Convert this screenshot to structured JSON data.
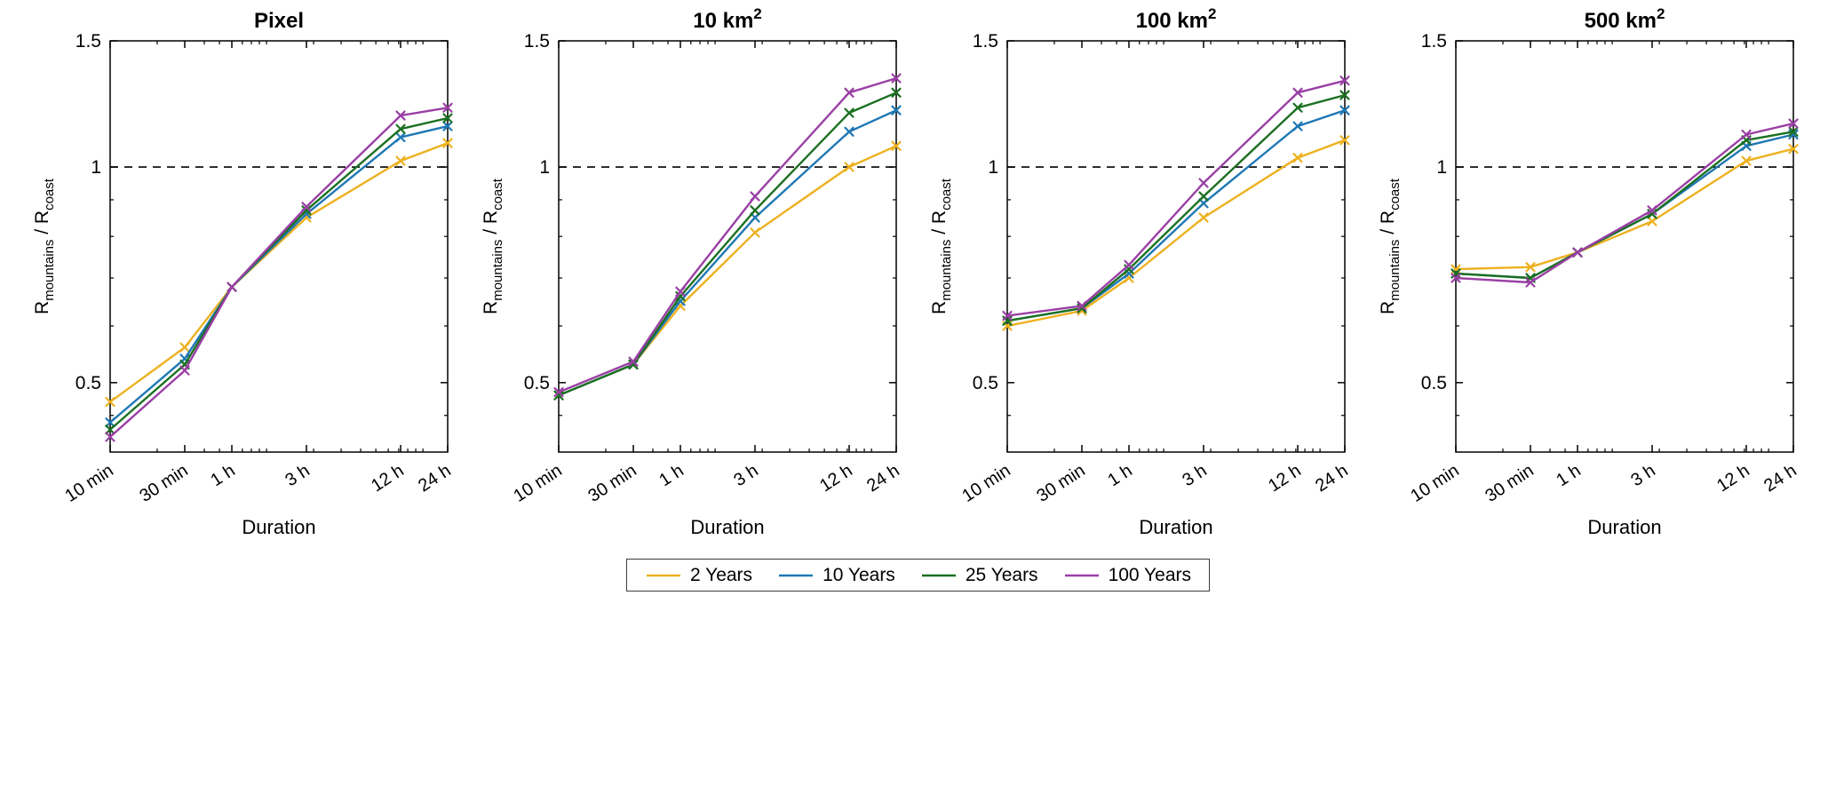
{
  "figure": {
    "background": "#ffffff",
    "axis_color": "#000000",
    "reference_line_style": "dashed",
    "legend": {
      "position": "bottom-center",
      "items": [
        {
          "label": "2 Years",
          "color": "#EDB120"
        },
        {
          "label": "10 Years",
          "color": "#1F78B4"
        },
        {
          "label": "25 Years",
          "color": "#1B7021"
        },
        {
          "label": "100 Years",
          "color": "#9A3FA5"
        }
      ]
    }
  },
  "chart_data": [
    {
      "type": "line",
      "title": "Pixel",
      "title_sup": "",
      "xlabel": "Duration",
      "ylabel_parts": [
        "R",
        "mountains",
        " / R",
        "coast"
      ],
      "x_ticklabels": [
        "10 min",
        "30 min",
        "1 h",
        "3 h",
        "12 h",
        "24 h"
      ],
      "x_values_minutes": [
        10,
        30,
        60,
        180,
        720,
        1440
      ],
      "x_scale": "log",
      "y_scale": "log",
      "ylim": [
        0.4,
        1.5
      ],
      "y_ticks": [
        0.5,
        1,
        1.5
      ],
      "y_ticklabels": [
        "0.5",
        "1",
        "1.5"
      ],
      "dashed_reference_y": 1,
      "grid": false,
      "series": [
        {
          "name": "2 Years",
          "color": "#EDB120",
          "values": [
            0.47,
            0.56,
            0.68,
            0.85,
            1.02,
            1.08
          ]
        },
        {
          "name": "10 Years",
          "color": "#1F78B4",
          "values": [
            0.44,
            0.54,
            0.68,
            0.86,
            1.1,
            1.14
          ]
        },
        {
          "name": "25 Years",
          "color": "#1B7021",
          "values": [
            0.43,
            0.53,
            0.68,
            0.87,
            1.13,
            1.17
          ]
        },
        {
          "name": "100 Years",
          "color": "#9A3FA5",
          "values": [
            0.42,
            0.52,
            0.68,
            0.88,
            1.18,
            1.21
          ]
        }
      ]
    },
    {
      "type": "line",
      "title": "10 km",
      "title_sup": "2",
      "xlabel": "Duration",
      "ylabel_parts": [
        "R",
        "mountains",
        " / R",
        "coast"
      ],
      "x_ticklabels": [
        "10 min",
        "30 min",
        "1 h",
        "3 h",
        "12 h",
        "24 h"
      ],
      "x_values_minutes": [
        10,
        30,
        60,
        180,
        720,
        1440
      ],
      "x_scale": "log",
      "y_scale": "log",
      "ylim": [
        0.4,
        1.5
      ],
      "y_ticks": [
        0.5,
        1,
        1.5
      ],
      "y_ticklabels": [
        "0.5",
        "1",
        "1.5"
      ],
      "dashed_reference_y": 1,
      "grid": false,
      "series": [
        {
          "name": "2 Years",
          "color": "#EDB120",
          "values": [
            0.48,
            0.53,
            0.64,
            0.81,
            1.0,
            1.07
          ]
        },
        {
          "name": "10 Years",
          "color": "#1F78B4",
          "values": [
            0.48,
            0.53,
            0.65,
            0.85,
            1.12,
            1.2
          ]
        },
        {
          "name": "25 Years",
          "color": "#1B7021",
          "values": [
            0.48,
            0.53,
            0.66,
            0.87,
            1.19,
            1.27
          ]
        },
        {
          "name": "100 Years",
          "color": "#9A3FA5",
          "values": [
            0.485,
            0.535,
            0.67,
            0.91,
            1.27,
            1.33
          ]
        }
      ]
    },
    {
      "type": "line",
      "title": "100 km",
      "title_sup": "2",
      "xlabel": "Duration",
      "ylabel_parts": [
        "R",
        "mountains",
        " / R",
        "coast"
      ],
      "x_ticklabels": [
        "10 min",
        "30 min",
        "1 h",
        "3 h",
        "12 h",
        "24 h"
      ],
      "x_values_minutes": [
        10,
        30,
        60,
        180,
        720,
        1440
      ],
      "x_scale": "log",
      "y_scale": "log",
      "ylim": [
        0.4,
        1.5
      ],
      "y_ticks": [
        0.5,
        1,
        1.5
      ],
      "y_ticklabels": [
        "0.5",
        "1",
        "1.5"
      ],
      "dashed_reference_y": 1,
      "grid": false,
      "series": [
        {
          "name": "2 Years",
          "color": "#EDB120",
          "values": [
            0.6,
            0.63,
            0.7,
            0.85,
            1.03,
            1.09
          ]
        },
        {
          "name": "10 Years",
          "color": "#1F78B4",
          "values": [
            0.61,
            0.635,
            0.71,
            0.89,
            1.14,
            1.2
          ]
        },
        {
          "name": "25 Years",
          "color": "#1B7021",
          "values": [
            0.61,
            0.635,
            0.72,
            0.91,
            1.21,
            1.26
          ]
        },
        {
          "name": "100 Years",
          "color": "#9A3FA5",
          "values": [
            0.62,
            0.64,
            0.73,
            0.95,
            1.27,
            1.32
          ]
        }
      ]
    },
    {
      "type": "line",
      "title": "500 km",
      "title_sup": "2",
      "xlabel": "Duration",
      "ylabel_parts": [
        "R",
        "mountains",
        " / R",
        "coast"
      ],
      "x_ticklabels": [
        "10 min",
        "30 min",
        "1 h",
        "3 h",
        "12 h",
        "24 h"
      ],
      "x_values_minutes": [
        10,
        30,
        60,
        180,
        720,
        1440
      ],
      "x_scale": "log",
      "y_scale": "log",
      "ylim": [
        0.4,
        1.5
      ],
      "y_ticks": [
        0.5,
        1,
        1.5
      ],
      "y_ticklabels": [
        "0.5",
        "1",
        "1.5"
      ],
      "dashed_reference_y": 1,
      "grid": false,
      "series": [
        {
          "name": "2 Years",
          "color": "#EDB120",
          "values": [
            0.72,
            0.725,
            0.76,
            0.84,
            1.02,
            1.06
          ]
        },
        {
          "name": "10 Years",
          "color": "#1F78B4",
          "values": [
            0.71,
            0.7,
            0.76,
            0.86,
            1.07,
            1.11
          ]
        },
        {
          "name": "25 Years",
          "color": "#1B7021",
          "values": [
            0.71,
            0.7,
            0.76,
            0.86,
            1.09,
            1.12
          ]
        },
        {
          "name": "100 Years",
          "color": "#9A3FA5",
          "values": [
            0.7,
            0.69,
            0.76,
            0.87,
            1.11,
            1.15
          ]
        }
      ]
    }
  ]
}
